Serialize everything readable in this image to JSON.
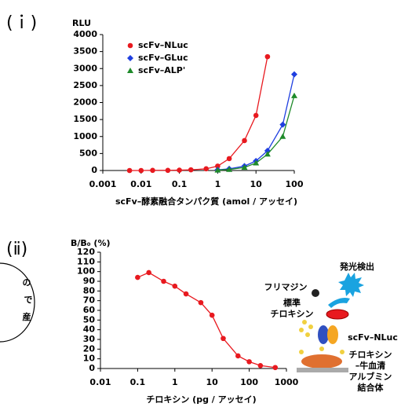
{
  "chart_data": [
    {
      "type": "line",
      "panel": "(ｉ)",
      "y_label": "RLU",
      "x_label": "scFv–酵素融合タンパク質 (amol / アッセイ)",
      "log_x": true,
      "xlim": [
        0.001,
        100
      ],
      "xticks": [
        0.001,
        0.01,
        0.1,
        1,
        10,
        100
      ],
      "ylim": [
        0,
        4000
      ],
      "yticks": [
        0,
        500,
        1000,
        1500,
        2000,
        2500,
        3000,
        3500,
        4000
      ],
      "legend": "upper left",
      "series": [
        {
          "name": "scFv–NLuc",
          "color": "#e8191f",
          "marker": "circle",
          "x": [
            0.005,
            0.01,
            0.02,
            0.05,
            0.1,
            0.2,
            0.5,
            1,
            2,
            5,
            10,
            20
          ],
          "values": [
            0,
            0,
            5,
            5,
            10,
            20,
            50,
            130,
            350,
            880,
            1620,
            3350
          ]
        },
        {
          "name": "scFv–GLuc",
          "color": "#1f3fe0",
          "marker": "diamond",
          "x": [
            1,
            2,
            5,
            10,
            20,
            50,
            100
          ],
          "values": [
            20,
            50,
            130,
            280,
            580,
            1350,
            2830
          ]
        },
        {
          "name": "scFv–ALP'",
          "color": "#1e8a2a",
          "marker": "triangle",
          "x": [
            1,
            2,
            5,
            10,
            20,
            50,
            100
          ],
          "values": [
            10,
            30,
            90,
            220,
            480,
            1000,
            2200
          ]
        }
      ]
    },
    {
      "type": "line",
      "panel": "(ⅱ)",
      "y_label": "B/B₀ (%)",
      "x_label": "チロキシン (pg / アッセイ)",
      "log_x": true,
      "xlim": [
        0.01,
        1000
      ],
      "xticks": [
        0.01,
        0.1,
        1,
        10,
        100,
        1000
      ],
      "ylim": [
        0,
        120
      ],
      "yticks": [
        0,
        10,
        20,
        30,
        40,
        50,
        60,
        70,
        80,
        90,
        100,
        110,
        120
      ],
      "series": [
        {
          "color": "#e8191f",
          "marker": "circle",
          "x": [
            0.1,
            0.2,
            0.5,
            1,
            2,
            5,
            10,
            20,
            50,
            100,
            200,
            500
          ],
          "values": [
            94,
            99,
            90,
            85,
            77,
            68,
            55,
            31,
            13,
            7,
            3,
            1
          ]
        }
      ]
    }
  ],
  "diagram": {
    "detection": "発光検出",
    "furimazine": "フリマジン",
    "standard": [
      "標準",
      "チロキシン"
    ],
    "tracer": "scFv–NLuc",
    "conjugate": [
      "チロキシン",
      "–牛血清",
      "アルブミン",
      "結合体"
    ]
  },
  "callout": [
    "の",
    "で",
    "産"
  ]
}
